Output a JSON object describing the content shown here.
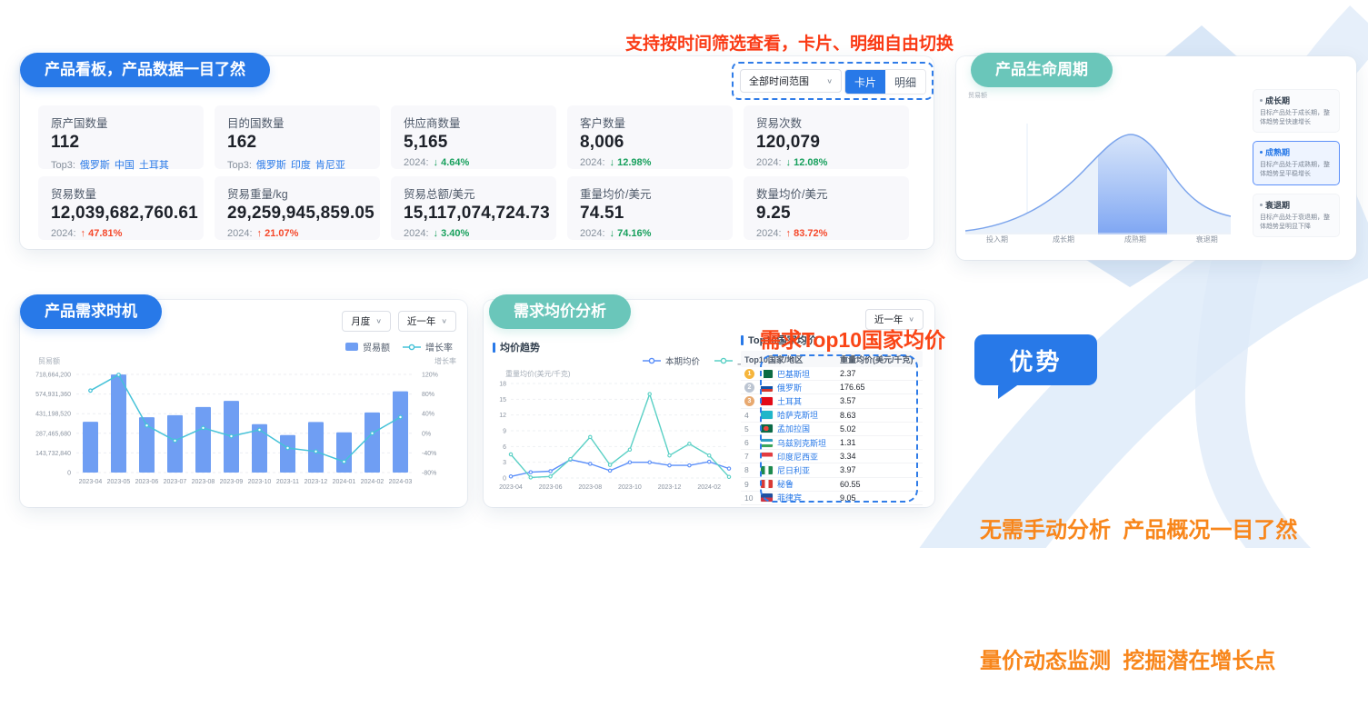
{
  "annotations": {
    "top": "支持按时间筛选查看，卡片、明细自由切换",
    "top_color": "#fa3b16",
    "table": "需求Top10国家均价",
    "table_color": "#fa4516",
    "advantage_title": "优势",
    "advantage_line1": "无需手动分析  产品概况一目了然",
    "advantage_line2": "量价动态监测  挖掘潜在增长点",
    "advantage_color": "#f8861b"
  },
  "dashboard": {
    "title": "产品看板，产品数据一目了然",
    "time_filter": "全部时间范围",
    "view_card": "卡片",
    "view_detail": "明细",
    "stats": [
      {
        "label": "原产国数量",
        "value": "112",
        "meta_label": "Top3:",
        "top3": [
          "俄罗斯",
          "中国",
          "土耳其"
        ]
      },
      {
        "label": "目的国数量",
        "value": "162",
        "meta_label": "Top3:",
        "top3": [
          "俄罗斯",
          "印度",
          "肯尼亚"
        ]
      },
      {
        "label": "供应商数量",
        "value": "5,165",
        "meta_label": "2024:",
        "delta": {
          "dir": "down",
          "pct": "4.64%"
        }
      },
      {
        "label": "客户数量",
        "value": "8,006",
        "meta_label": "2024:",
        "delta": {
          "dir": "down",
          "pct": "12.98%"
        }
      },
      {
        "label": "贸易次数",
        "value": "120,079",
        "meta_label": "2024:",
        "delta": {
          "dir": "down",
          "pct": "12.08%"
        }
      },
      {
        "label": "贸易数量",
        "value": "12,039,682,760.61",
        "meta_label": "2024:",
        "delta": {
          "dir": "up",
          "pct": "47.81%"
        }
      },
      {
        "label": "贸易重量/kg",
        "value": "29,259,945,859.05",
        "meta_label": "2024:",
        "delta": {
          "dir": "up",
          "pct": "21.07%"
        }
      },
      {
        "label": "贸易总额/美元",
        "value": "15,117,074,724.73",
        "meta_label": "2024:",
        "delta": {
          "dir": "down",
          "pct": "3.40%"
        }
      },
      {
        "label": "重量均价/美元",
        "value": "74.51",
        "meta_label": "2024:",
        "delta": {
          "dir": "down",
          "pct": "74.16%"
        }
      },
      {
        "label": "数量均价/美元",
        "value": "9.25",
        "meta_label": "2024:",
        "delta": {
          "dir": "up",
          "pct": "83.72%"
        }
      }
    ]
  },
  "lifecycle": {
    "title": "产品生命周期",
    "y_label": "贸易额",
    "stages": [
      "投入期",
      "成长期",
      "成熟期",
      "衰退期"
    ],
    "highlighted_stage": "成熟期",
    "cards": [
      {
        "name": "成长期",
        "desc": "目标产品处于成长期，整体趋势呈快速增长",
        "active": false
      },
      {
        "name": "成熟期",
        "desc": "目标产品处于成熟期，整体趋势呈平稳增长",
        "active": true
      },
      {
        "name": "衰退期",
        "desc": "目标产品处于衰退期，整体趋势呈明显下降",
        "active": false
      }
    ]
  },
  "chart_data": [
    {
      "id": "demand_timing",
      "type": "bar+line",
      "title": "产品需求时机",
      "filters": [
        "月度",
        "近一年"
      ],
      "categories": [
        "2023-04",
        "2023-05",
        "2023-06",
        "2023-07",
        "2023-08",
        "2023-09",
        "2023-10",
        "2023-11",
        "2023-12",
        "2024-01",
        "2024-02",
        "2024-03"
      ],
      "series": [
        {
          "name": "贸易额",
          "type": "bar",
          "color": "#6f9ef3",
          "values": [
            372000000,
            718000000,
            405000000,
            420000000,
            480000000,
            525000000,
            355000000,
            275000000,
            370000000,
            295000000,
            440000000,
            595000000
          ]
        },
        {
          "name": "增长率",
          "type": "line",
          "color": "#45c2d8",
          "values": [
            87,
            119,
            16,
            -15,
            11,
            -6,
            7,
            -30,
            -37,
            -58,
            0,
            33
          ]
        }
      ],
      "y_left": {
        "label": "贸易额",
        "max": 718664200,
        "ticks": [
          "718,664,200",
          "574,931,360",
          "431,198,520",
          "287,465,680",
          "143,732,840",
          "0"
        ]
      },
      "y_right": {
        "label": "增长率",
        "max": 120,
        "min": -80,
        "ticks": [
          "120%",
          "80%",
          "40%",
          "0%",
          "-40%",
          "-80%"
        ]
      },
      "grid": true,
      "legend_position": "top-right"
    },
    {
      "id": "avg_price_trend",
      "type": "line",
      "panel_title": "需求均价分析",
      "title": "均价趋势",
      "filter": "近一年",
      "y_label": "重量均价(美元/千克)",
      "ylim": [
        0,
        18
      ],
      "y_ticks": [
        0,
        3,
        6,
        9,
        12,
        15,
        18
      ],
      "x": [
        "2023-04",
        "2023-05",
        "2023-06",
        "2023-07",
        "2023-08",
        "2023-09",
        "2023-10",
        "2023-11",
        "2023-12",
        "2024-01",
        "2024-02",
        "2024-03"
      ],
      "x_tick_labels": [
        "2023-04",
        "2023-06",
        "2023-08",
        "2023-10",
        "2023-12",
        "2024-02"
      ],
      "series": [
        {
          "name": "本期均价",
          "color": "#5b8ff9",
          "values": [
            0.3,
            1.1,
            1.3,
            3.5,
            2.7,
            1.4,
            3.0,
            3.0,
            2.4,
            2.4,
            3.1,
            1.8
          ]
        },
        {
          "name": "上期均价",
          "color": "#5ad0c5",
          "values": [
            4.5,
            0.1,
            0.3,
            3.6,
            7.8,
            2.5,
            5.4,
            16.0,
            4.3,
            6.5,
            4.3,
            0.2
          ]
        }
      ],
      "grid": true,
      "legend_position": "top"
    },
    {
      "id": "top10_table",
      "type": "table",
      "title": "Top10国家均价",
      "columns": [
        "Top10国家/地区",
        "重量均价(美元/千克)"
      ],
      "rows": [
        {
          "rank": 1,
          "country": "巴基斯坦",
          "value": "2.37",
          "flag": "linear-gradient(90deg,#fff 0 22%,#0b6b43 22% 100%)"
        },
        {
          "rank": 2,
          "country": "俄罗斯",
          "value": "176.65",
          "flag": "linear-gradient(180deg,#fff 0 33%,#0f52a8 33% 66%,#d5362c 66% 100%)"
        },
        {
          "rank": 3,
          "country": "土耳其",
          "value": "3.57",
          "flag": "#e30a17"
        },
        {
          "rank": 4,
          "country": "哈萨克斯坦",
          "value": "8.63",
          "flag": "#20b6c9"
        },
        {
          "rank": 5,
          "country": "孟加拉国",
          "value": "5.02",
          "flag": "radial-gradient(circle at 45% 50%,#f0433e 0 32%,#0a6a46 33% 100%)"
        },
        {
          "rank": 6,
          "country": "乌兹别克斯坦",
          "value": "1.31",
          "flag": "linear-gradient(180deg,#2f9fc4 0 33%,#fff 33% 66%,#3aa65c 66% 100%)"
        },
        {
          "rank": 7,
          "country": "印度尼西亚",
          "value": "3.34",
          "flag": "linear-gradient(180deg,#e23b41 0 50%,#fff 50% 100%)"
        },
        {
          "rank": 8,
          "country": "尼日利亚",
          "value": "3.97",
          "flag": "linear-gradient(90deg,#1d8a4e 0 33%,#fff 33% 66%,#1d8a4e 66% 100%)"
        },
        {
          "rank": 9,
          "country": "秘鲁",
          "value": "60.55",
          "flag": "linear-gradient(90deg,#d93a35 0 33%,#fff 33% 66%,#d93a35 66% 100%)"
        },
        {
          "rank": 10,
          "country": "菲律宾",
          "value": "9.05",
          "flag": "linear-gradient(180deg,#1f4fa0 0 50%,#cf3545 50% 100%)"
        }
      ]
    }
  ],
  "colors": {
    "primary_blue": "#2879e8",
    "teal_pill": "#6ac6ba",
    "up_red": "#f5482b",
    "down_green": "#18a05d"
  }
}
